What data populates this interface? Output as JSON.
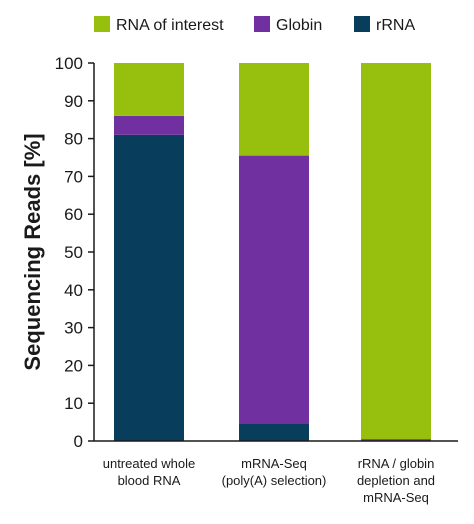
{
  "chart_data": {
    "type": "bar",
    "stacked": true,
    "title": "",
    "xlabel": "",
    "ylabel": "Sequencing Reads [%]",
    "ylim": [
      0,
      100
    ],
    "yticks": [
      0,
      10,
      20,
      30,
      40,
      50,
      60,
      70,
      80,
      90,
      100
    ],
    "grid": false,
    "legend_position": "top",
    "categories": [
      [
        "untreated whole",
        "blood RNA"
      ],
      [
        "mRNA-Seq",
        "(poly(A) selection)"
      ],
      [
        "rRNA / globin",
        "depletion and",
        "mRNA-Seq"
      ]
    ],
    "series": [
      {
        "name": "rRNA",
        "color": "#083d5c",
        "values": [
          81,
          4.5,
          0
        ]
      },
      {
        "name": "Globin",
        "color": "#7030a0",
        "values": [
          5,
          71,
          0.5
        ]
      },
      {
        "name": "RNA of interest",
        "color": "#97bf0d",
        "values": [
          14,
          24.5,
          99.5
        ]
      }
    ],
    "legend_order": [
      "RNA of interest",
      "Globin",
      "rRNA"
    ]
  }
}
